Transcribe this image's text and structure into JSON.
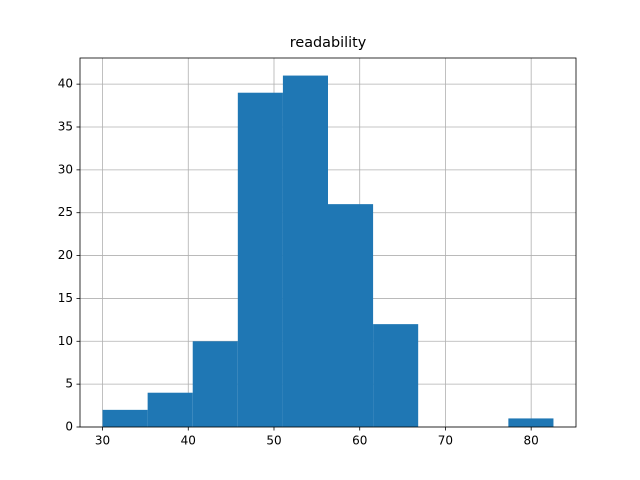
{
  "chart_data": {
    "type": "histogram",
    "title": "readability",
    "bins": [
      30,
      35.26,
      40.52,
      45.78,
      51.04,
      56.3,
      61.56,
      66.82,
      72.08,
      77.34,
      82.6
    ],
    "values": [
      2,
      4,
      10,
      39,
      41,
      26,
      12,
      0,
      0,
      1
    ],
    "color": "#1f77b4",
    "xlim": [
      27.37,
      85.23
    ],
    "xticks": [
      30,
      40,
      50,
      60,
      70,
      80
    ],
    "ylim": [
      0,
      43.05
    ],
    "yticks": [
      0,
      5,
      10,
      15,
      20,
      25,
      30,
      35,
      40
    ],
    "grid": true
  }
}
